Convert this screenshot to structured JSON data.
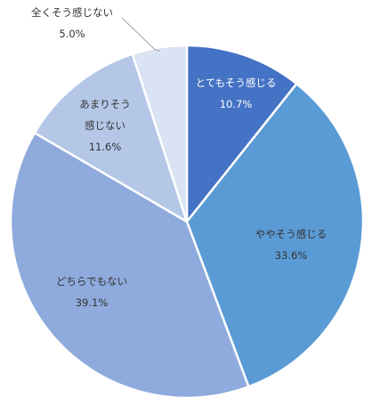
{
  "chart_data": {
    "type": "pie",
    "slices": [
      {
        "label": "とてもそう感じる",
        "value": 10.7,
        "value_text": "10.7%",
        "color": "#4472c4",
        "text_color": "#ffffff"
      },
      {
        "label": "ややそう感じる",
        "value": 33.6,
        "value_text": "33.6%",
        "color": "#5b9bd5",
        "text_color": "#333333"
      },
      {
        "label": "どちらでもない",
        "value": 39.1,
        "value_text": "39.1%",
        "color": "#8faadc",
        "text_color": "#333333"
      },
      {
        "label": "あまりそう\n感じない",
        "value": 11.6,
        "value_text": "11.6%",
        "color": "#b4c7e7",
        "text_color": "#333333"
      },
      {
        "label": "全くそう感じない",
        "value": 5.0,
        "value_text": "5.0%",
        "color": "#dae3f3",
        "text_color": "#333333"
      }
    ],
    "start_angle": "12 o'clock",
    "direction": "clockwise",
    "legend": "none"
  }
}
